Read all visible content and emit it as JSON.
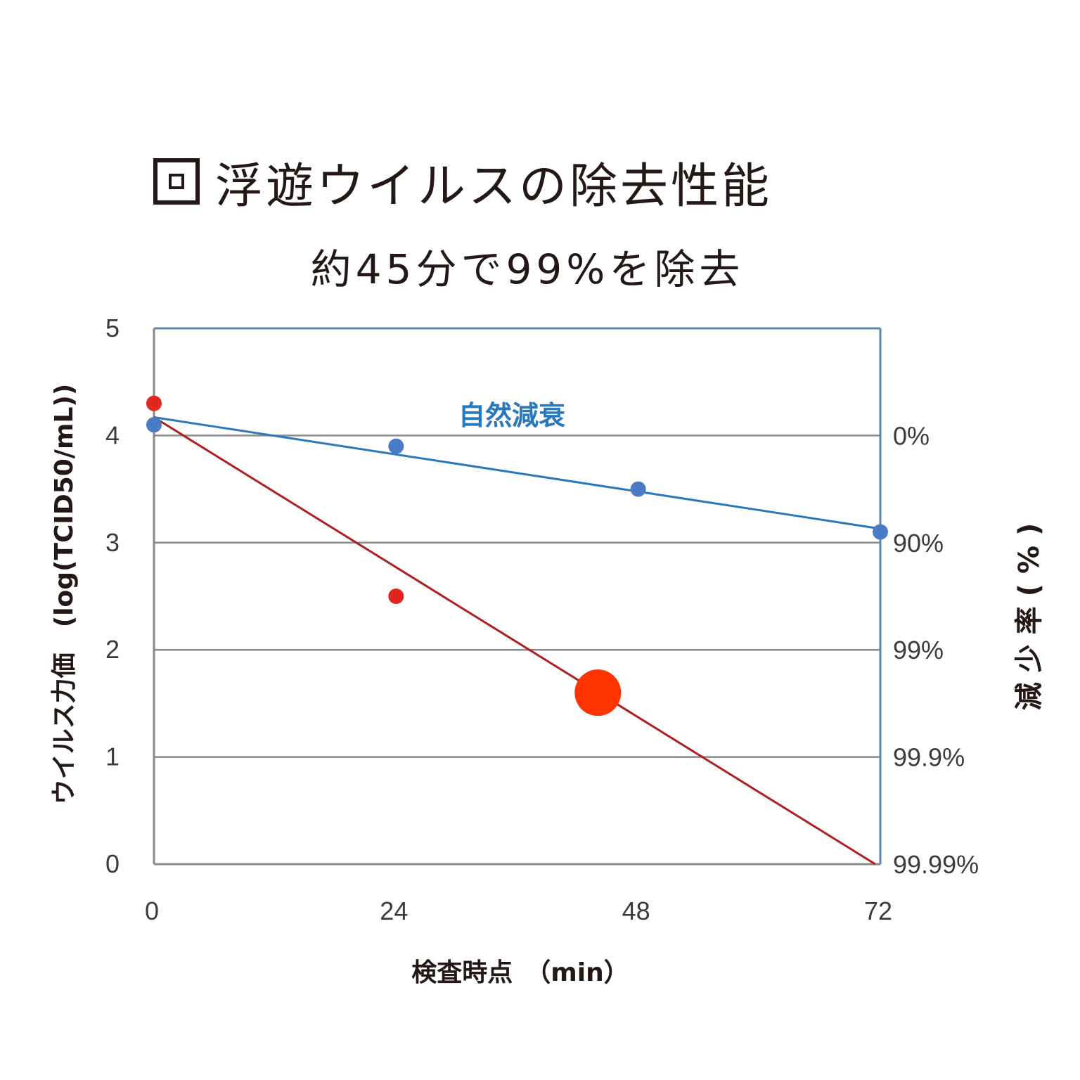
{
  "header": {
    "title": "浮遊ウイルスの除去性能",
    "subtitle": "約45分で99%を除去"
  },
  "colors": {
    "natural_decay": "#2878be",
    "natural_decay_points": "#4a7cc6",
    "removal_line": "#b01e1e",
    "removal_points": "#e0261e",
    "highlight": "#ff3300",
    "grid": "#8a8a8a",
    "frame": "#5b84b1"
  },
  "chart_data": {
    "type": "scatter",
    "title": "浮遊ウイルスの除去性能",
    "subtitle": "約45分で99%を除去",
    "xlabel": "検査時点　（min）",
    "ylabel": "ウイルス力価　(log(TCID50/mL))",
    "y2label": "減少率(%)",
    "xlim": [
      0,
      72
    ],
    "ylim": [
      0,
      5
    ],
    "x_ticks": [
      "0",
      "24",
      "48",
      "72"
    ],
    "y_ticks": [
      "0",
      "1",
      "2",
      "3",
      "4",
      "5"
    ],
    "y2_ticks": [
      {
        "y": 4,
        "label": "0%"
      },
      {
        "y": 3,
        "label": "90%"
      },
      {
        "y": 2,
        "label": "99%"
      },
      {
        "y": 1,
        "label": "99.9%"
      },
      {
        "y": 0,
        "label": "99.99%"
      }
    ],
    "grid": true,
    "series": [
      {
        "name": "自然減衰",
        "points": [
          [
            0,
            4.1
          ],
          [
            24,
            3.9
          ],
          [
            48,
            3.5
          ],
          [
            72,
            3.1
          ]
        ],
        "trend": [
          [
            0,
            4.17
          ],
          [
            72,
            3.13
          ]
        ]
      },
      {
        "points": [
          [
            0,
            4.3
          ],
          [
            24,
            2.5
          ]
        ],
        "trend": [
          [
            0,
            4.17
          ],
          [
            71.5,
            0
          ]
        ]
      }
    ],
    "highlight": {
      "x": 44,
      "y": 1.6
    }
  }
}
